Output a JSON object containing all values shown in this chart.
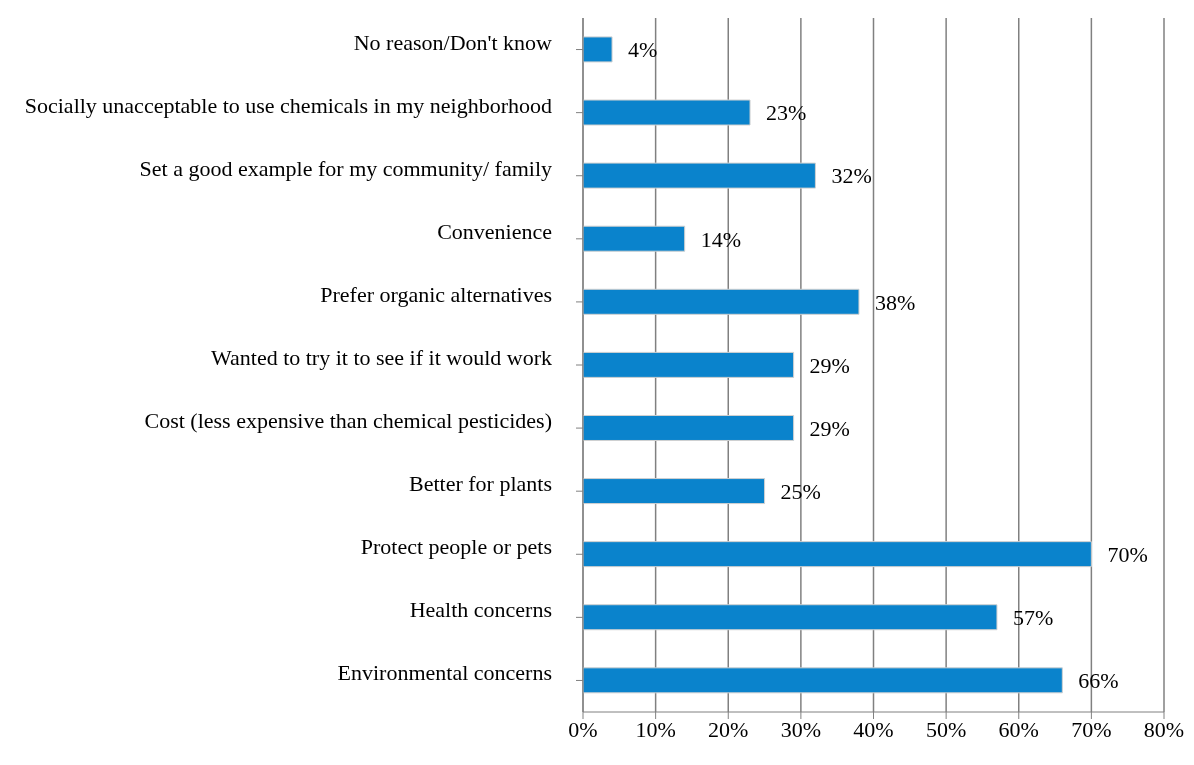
{
  "chart_data": {
    "type": "bar",
    "orientation": "horizontal",
    "categories": [
      "No reason/Don't know",
      "Socially unacceptable to use chemicals in my neighborhood",
      "Set a good example for my community/ family",
      "Convenience",
      "Prefer organic alternatives",
      "Wanted to try it to see if it would work",
      "Cost (less expensive than chemical pesticides)",
      "Better for plants",
      "Protect people or pets",
      "Health concerns",
      "Environmental concerns"
    ],
    "values": [
      4,
      23,
      32,
      14,
      38,
      29,
      29,
      25,
      70,
      57,
      66
    ],
    "value_labels": [
      "4%",
      "23%",
      "32%",
      "14%",
      "38%",
      "29%",
      "29%",
      "25%",
      "70%",
      "57%",
      "66%"
    ],
    "color": "#0a83cc",
    "xlim": [
      0,
      80
    ],
    "xticks": [
      {
        "value": 0,
        "label": "0%"
      },
      {
        "value": 10,
        "label": "10%"
      },
      {
        "value": 20,
        "label": "20%"
      },
      {
        "value": 30,
        "label": "30%"
      },
      {
        "value": 40,
        "label": "40%"
      },
      {
        "value": 50,
        "label": "50%"
      },
      {
        "value": 60,
        "label": "60%"
      },
      {
        "value": 70,
        "label": "70%"
      },
      {
        "value": 80,
        "label": "80%"
      }
    ],
    "grid": "x",
    "legend": false
  }
}
